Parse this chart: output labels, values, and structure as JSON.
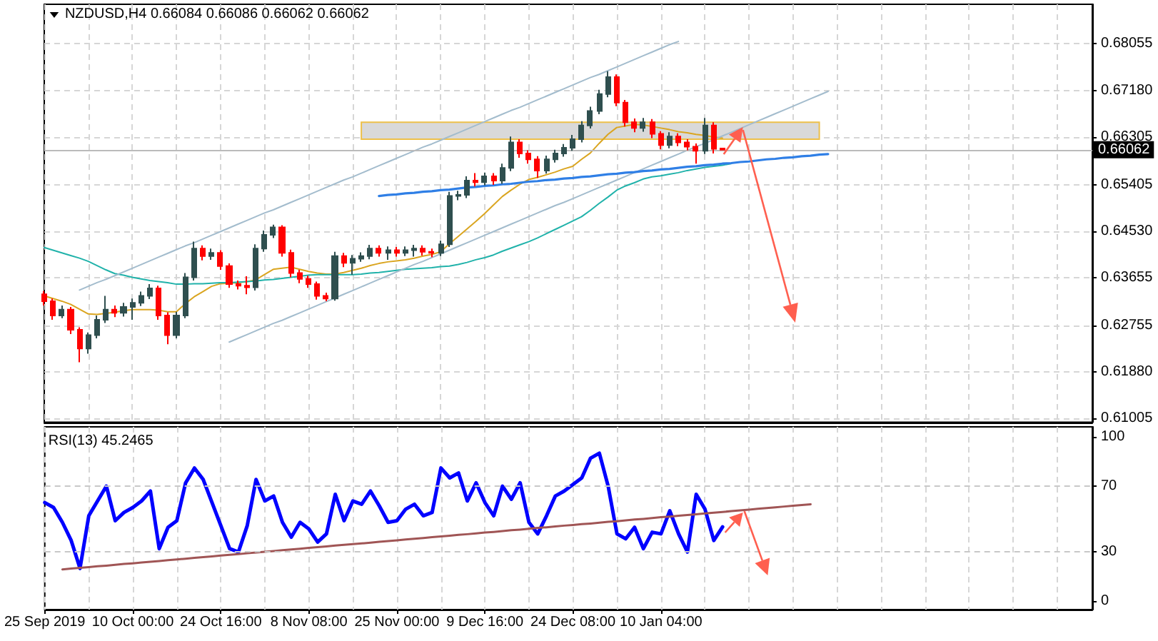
{
  "chart_data": [
    {
      "type": "candlestick",
      "title": "NZDUSD,H4 0.66084 0.66086 0.66062 0.66062",
      "categories": [
        null,
        null,
        null,
        null,
        null,
        null,
        null,
        null,
        null,
        null,
        null,
        null,
        null,
        null,
        null,
        null,
        null,
        null,
        null,
        null,
        null,
        null,
        null,
        null,
        null,
        null,
        null,
        null,
        null,
        null,
        null,
        null,
        null,
        null,
        null,
        null,
        null,
        null,
        null,
        null,
        null,
        null,
        null,
        null,
        null,
        null,
        null,
        null,
        null,
        null,
        null,
        null,
        null,
        null,
        null,
        null,
        null,
        null,
        null,
        null,
        null,
        null,
        null,
        null,
        null,
        null,
        null,
        null,
        null,
        null,
        null,
        null,
        null,
        null,
        null,
        null,
        null,
        null,
        null,
        null,
        null,
        null,
        null,
        null,
        null,
        null,
        null,
        null,
        null,
        null,
        null,
        null,
        null,
        null,
        null,
        null,
        null,
        null,
        null,
        null,
        null,
        null,
        null,
        null,
        null,
        null,
        null,
        null,
        null,
        null,
        null,
        null,
        null,
        null,
        null,
        null,
        null,
        null,
        null,
        null
      ],
      "ohlc": [
        [
          0.6334,
          0.634,
          0.6313,
          0.6321
        ],
        [
          0.6321,
          0.6326,
          0.6286,
          0.6294
        ],
        [
          0.6294,
          0.6313,
          0.6289,
          0.6305
        ],
        [
          0.6305,
          0.631,
          0.6259,
          0.6267
        ],
        [
          0.6267,
          0.6272,
          0.6206,
          0.6232
        ],
        [
          0.6232,
          0.6262,
          0.6222,
          0.6257
        ],
        [
          0.6257,
          0.6294,
          0.6251,
          0.6286
        ],
        [
          0.6286,
          0.6331,
          0.628,
          0.6305
        ],
        [
          0.6305,
          0.6313,
          0.6291,
          0.6299
        ],
        [
          0.6299,
          0.6318,
          0.6292,
          0.631
        ],
        [
          0.631,
          0.6326,
          0.6286,
          0.6318
        ],
        [
          0.6318,
          0.6339,
          0.6312,
          0.6331
        ],
        [
          0.6331,
          0.6353,
          0.6325,
          0.6345
        ],
        [
          0.6345,
          0.635,
          0.6286,
          0.6294
        ],
        [
          0.6294,
          0.63,
          0.624,
          0.6257
        ],
        [
          0.6257,
          0.6301,
          0.6251,
          0.6294
        ],
        [
          0.6294,
          0.6374,
          0.6289,
          0.6366
        ],
        [
          0.6366,
          0.6433,
          0.636,
          0.642
        ],
        [
          0.642,
          0.6426,
          0.6398,
          0.6406
        ],
        [
          0.6406,
          0.642,
          0.6399,
          0.6412
        ],
        [
          0.6412,
          0.6417,
          0.638,
          0.6387
        ],
        [
          0.6387,
          0.6392,
          0.6346,
          0.6353
        ],
        [
          0.6353,
          0.636,
          0.6343,
          0.635
        ],
        [
          0.635,
          0.6368,
          0.6334,
          0.6347
        ],
        [
          0.6347,
          0.6428,
          0.6341,
          0.642
        ],
        [
          0.642,
          0.6454,
          0.6414,
          0.6446
        ],
        [
          0.6446,
          0.6465,
          0.644,
          0.646
        ],
        [
          0.646,
          0.6464,
          0.6405,
          0.6412
        ],
        [
          0.6412,
          0.6418,
          0.6366,
          0.6374
        ],
        [
          0.6374,
          0.638,
          0.6355,
          0.6363
        ],
        [
          0.6363,
          0.6369,
          0.6346,
          0.6353
        ],
        [
          0.6353,
          0.6358,
          0.6324,
          0.6331
        ],
        [
          0.6331,
          0.6337,
          0.6321,
          0.6326
        ],
        [
          0.6326,
          0.6414,
          0.6322,
          0.6406
        ],
        [
          0.6406,
          0.6412,
          0.6385,
          0.6393
        ],
        [
          0.6393,
          0.6408,
          0.6371,
          0.6401
        ],
        [
          0.6401,
          0.6413,
          0.6395,
          0.6406
        ],
        [
          0.6406,
          0.6427,
          0.64,
          0.642
        ],
        [
          0.642,
          0.6426,
          0.6405,
          0.6412
        ],
        [
          0.6412,
          0.6424,
          0.6399,
          0.6417
        ],
        [
          0.6417,
          0.6423,
          0.6405,
          0.6412
        ],
        [
          0.6412,
          0.6424,
          0.6406,
          0.6417
        ],
        [
          0.6417,
          0.6427,
          0.6405,
          0.642
        ],
        [
          0.642,
          0.6426,
          0.6407,
          0.6414
        ],
        [
          0.6414,
          0.642,
          0.6404,
          0.6412
        ],
        [
          0.6412,
          0.6435,
          0.6406,
          0.6428
        ],
        [
          0.6428,
          0.6527,
          0.6423,
          0.6519
        ],
        [
          0.6519,
          0.6529,
          0.6511,
          0.6521
        ],
        [
          0.6521,
          0.6556,
          0.6515,
          0.6548
        ],
        [
          0.6548,
          0.6562,
          0.6537,
          0.6545
        ],
        [
          0.6545,
          0.6563,
          0.6539,
          0.6556
        ],
        [
          0.6556,
          0.6562,
          0.654,
          0.6548
        ],
        [
          0.6548,
          0.658,
          0.6542,
          0.6572
        ],
        [
          0.6572,
          0.6631,
          0.6566,
          0.662
        ],
        [
          0.662,
          0.6626,
          0.6591,
          0.6599
        ],
        [
          0.6599,
          0.6605,
          0.658,
          0.6588
        ],
        [
          0.6588,
          0.6594,
          0.6553,
          0.6567
        ],
        [
          0.6567,
          0.6595,
          0.6561,
          0.6588
        ],
        [
          0.6588,
          0.6606,
          0.6582,
          0.6599
        ],
        [
          0.6599,
          0.6617,
          0.6593,
          0.661
        ],
        [
          0.661,
          0.6634,
          0.6604,
          0.6626
        ],
        [
          0.6626,
          0.666,
          0.662,
          0.6652
        ],
        [
          0.6652,
          0.6687,
          0.6646,
          0.6679
        ],
        [
          0.6679,
          0.6719,
          0.6673,
          0.6711
        ],
        [
          0.6711,
          0.6754,
          0.6705,
          0.6743
        ],
        [
          0.6743,
          0.6748,
          0.6688,
          0.6695
        ],
        [
          0.6695,
          0.67,
          0.665,
          0.6658
        ],
        [
          0.6658,
          0.6665,
          0.6639,
          0.6647
        ],
        [
          0.6647,
          0.6666,
          0.664,
          0.6658
        ],
        [
          0.6658,
          0.6664,
          0.6628,
          0.6636
        ],
        [
          0.6636,
          0.6641,
          0.6607,
          0.6615
        ],
        [
          0.6615,
          0.6639,
          0.6609,
          0.6631
        ],
        [
          0.6631,
          0.6637,
          0.6613,
          0.662
        ],
        [
          0.662,
          0.6626,
          0.6605,
          0.6612
        ],
        [
          0.6612,
          0.6618,
          0.658,
          0.6604
        ],
        [
          0.6604,
          0.6666,
          0.6598,
          0.6652
        ],
        [
          0.6652,
          0.6658,
          0.6599,
          0.6608
        ],
        [
          0.66084,
          0.66086,
          0.66062,
          0.66062
        ],
        null,
        null,
        null,
        null,
        null,
        null,
        null,
        null,
        null,
        null,
        null,
        null,
        null,
        null,
        null,
        null,
        null,
        null,
        null,
        null,
        null,
        null,
        null,
        null,
        null,
        null,
        null,
        null,
        null,
        null,
        null,
        null,
        null,
        null,
        null,
        null,
        null,
        null,
        null,
        null,
        null,
        null
      ],
      "colors": [
        "#ff0000",
        "#ff0000",
        "#2f4f4f",
        "#ff0000",
        "#ff0000",
        "#2f4f4f",
        "#2f4f4f",
        "#2f4f4f",
        "#ff0000",
        "#2f4f4f",
        "#2f4f4f",
        "#2f4f4f",
        "#2f4f4f",
        "#ff0000",
        "#ff0000",
        "#2f4f4f",
        "#2f4f4f",
        "#2f4f4f",
        "#ff0000",
        "#2f4f4f",
        "#ff0000",
        "#ff0000",
        "#ff0000",
        "#ff0000",
        "#2f4f4f",
        "#2f4f4f",
        "#2f4f4f",
        "#ff0000",
        "#ff0000",
        "#ff0000",
        "#ff0000",
        "#ff0000",
        "#ff0000",
        "#2f4f4f",
        "#ff0000",
        "#2f4f4f",
        "#2f4f4f",
        "#2f4f4f",
        "#ff0000",
        "#2f4f4f",
        "#ff0000",
        "#2f4f4f",
        "#2f4f4f",
        "#ff0000",
        "#ff0000",
        "#2f4f4f",
        "#2f4f4f",
        "#2f4f4f",
        "#2f4f4f",
        "#ff0000",
        "#2f4f4f",
        "#ff0000",
        "#2f4f4f",
        "#2f4f4f",
        "#ff0000",
        "#ff0000",
        "#ff0000",
        "#2f4f4f",
        "#2f4f4f",
        "#2f4f4f",
        "#2f4f4f",
        "#2f4f4f",
        "#2f4f4f",
        "#2f4f4f",
        "#2f4f4f",
        "#ff0000",
        "#ff0000",
        "#ff0000",
        "#2f4f4f",
        "#ff0000",
        "#ff0000",
        "#2f4f4f",
        "#ff0000",
        "#ff0000",
        "#ff0000",
        "#2f4f4f",
        "#ff0000",
        "#ff0000",
        null,
        null,
        null,
        null,
        null,
        null,
        null,
        null,
        null,
        null,
        null,
        null,
        null,
        null,
        null,
        null,
        null,
        null,
        null,
        null,
        null,
        null,
        null,
        null,
        null,
        null,
        null,
        null,
        null,
        null,
        null,
        null,
        null,
        null,
        null,
        null,
        null,
        null,
        null,
        null,
        null,
        null
      ],
      "series": [
        {
          "type": "line",
          "color": "#daa520",
          "values": [
            0.6331,
            0.6326,
            0.6321,
            0.6315,
            0.6306,
            0.6297,
            0.6296,
            0.6298,
            0.63,
            0.6303,
            0.6305,
            0.6305,
            0.6305,
            0.6304,
            0.6301,
            0.6301,
            0.6316,
            0.6329,
            0.6339,
            0.6349,
            0.6354,
            0.6355,
            0.6356,
            0.6358,
            0.6361,
            0.6371,
            0.6381,
            0.6383,
            0.6385,
            0.6381,
            0.6377,
            0.6374,
            0.6372,
            0.6372,
            0.6375,
            0.6379,
            0.6383,
            0.6388,
            0.6392,
            0.6395,
            0.6397,
            0.6399,
            0.6402,
            0.6406,
            0.6409,
            0.6414,
            0.6429,
            0.6443,
            0.6457,
            0.6471,
            0.6486,
            0.6502,
            0.6518,
            0.653,
            0.6541,
            0.655,
            0.6554,
            0.6559,
            0.6564,
            0.657,
            0.6575,
            0.6588,
            0.66,
            0.6618,
            0.6635,
            0.6648,
            0.6651,
            0.6654,
            0.6653,
            0.665,
            0.6647,
            0.6644,
            0.664,
            0.6638,
            0.6635,
            0.6633,
            0.663,
            0.6628,
            null,
            null,
            null,
            null,
            null,
            null,
            null,
            null,
            null,
            null,
            null,
            null,
            null,
            null,
            null,
            null,
            null,
            null,
            null,
            null,
            null,
            null,
            null,
            null,
            null,
            null,
            null,
            null,
            null,
            null,
            null,
            null,
            null,
            null,
            null,
            null,
            null,
            null,
            null,
            null,
            null,
            null
          ]
        },
        {
          "type": "line",
          "color": "#20b2aa",
          "values": [
            0.6422,
            0.6417,
            0.6412,
            0.6407,
            0.6402,
            0.6396,
            0.6388,
            0.638,
            0.6373,
            0.637,
            0.6366,
            0.6363,
            0.636,
            0.6358,
            0.6356,
            0.6353,
            0.6353,
            0.6354,
            0.6354,
            0.6355,
            0.6356,
            0.6356,
            0.6357,
            0.6358,
            0.6359,
            0.6361,
            0.6362,
            0.6364,
            0.6366,
            0.6368,
            0.637,
            0.6371,
            0.6371,
            0.6371,
            0.6371,
            0.6371,
            0.6372,
            0.6374,
            0.6375,
            0.6377,
            0.6379,
            0.6381,
            0.6382,
            0.6383,
            0.6384,
            0.6386,
            0.6387,
            0.639,
            0.6394,
            0.6399,
            0.6403,
            0.6408,
            0.6415,
            0.6421,
            0.6427,
            0.6433,
            0.644,
            0.6448,
            0.6456,
            0.6464,
            0.6472,
            0.648,
            0.6492,
            0.6505,
            0.6517,
            0.653,
            0.6538,
            0.6544,
            0.6551,
            0.6555,
            0.6557,
            0.656,
            0.6563,
            0.6567,
            0.657,
            0.6573,
            0.6575,
            0.6577,
            0.658,
            null,
            null,
            null,
            null,
            null,
            null,
            null,
            null,
            null,
            null,
            null,
            null,
            null,
            null,
            null,
            null,
            null,
            null,
            null,
            null,
            null,
            null,
            null,
            null,
            null,
            null,
            null,
            null,
            null,
            null,
            null,
            null,
            null,
            null,
            null,
            null,
            null,
            null,
            null,
            null,
            null
          ]
        },
        {
          "type": "line",
          "color": "#a3bccd",
          "values": [
            null,
            null,
            null,
            null,
            0.6342,
            0.6349,
            0.6356,
            0.6362,
            0.6369,
            0.6376,
            0.6383,
            0.639,
            0.6397,
            0.6404,
            0.6411,
            0.6418,
            0.6425,
            0.6431,
            0.6438,
            0.6445,
            0.6452,
            0.6459,
            0.6466,
            0.6473,
            0.648,
            0.6487,
            0.6493,
            0.65,
            0.6507,
            0.6514,
            0.6521,
            0.6528,
            0.6535,
            0.6542,
            0.6549,
            0.6555,
            0.6562,
            0.6569,
            0.6576,
            0.6583,
            0.659,
            0.6597,
            0.6604,
            0.6611,
            0.6617,
            0.6624,
            0.6631,
            0.6638,
            0.6645,
            0.6652,
            0.6659,
            0.6666,
            0.6673,
            0.668,
            0.6686,
            0.6693,
            0.67,
            0.6707,
            0.6714,
            0.6721,
            0.6728,
            0.6735,
            0.6742,
            0.6748,
            0.6755,
            0.6762,
            0.6769,
            0.6776,
            0.6783,
            0.679,
            0.6797,
            0.6804,
            0.681,
            null,
            null,
            null,
            null,
            null,
            null,
            null,
            null,
            null,
            null,
            null,
            null,
            null,
            null,
            null,
            null,
            null,
            null,
            null,
            null,
            null,
            null,
            null,
            null,
            null,
            null,
            null,
            null,
            null,
            null,
            null,
            null,
            null,
            null,
            null,
            null,
            null,
            null,
            null,
            null,
            null,
            null,
            null,
            null,
            null,
            null,
            null
          ]
        },
        {
          "type": "line",
          "color": "#a3bccd",
          "values": [
            null,
            null,
            null,
            null,
            null,
            null,
            null,
            null,
            null,
            null,
            null,
            null,
            null,
            null,
            null,
            null,
            null,
            null,
            null,
            null,
            null,
            0.6244,
            0.6251,
            0.6258,
            0.6265,
            0.6272,
            0.6279,
            0.6285,
            0.6292,
            0.6299,
            0.6306,
            0.6313,
            0.632,
            0.6327,
            0.6334,
            0.6341,
            0.6348,
            0.6355,
            0.6362,
            0.6369,
            0.6376,
            0.6383,
            0.639,
            0.6396,
            0.6403,
            0.641,
            0.6417,
            0.6424,
            0.6431,
            0.6438,
            0.6445,
            0.6452,
            0.6459,
            0.6466,
            0.6473,
            0.648,
            0.6487,
            0.6494,
            0.6501,
            0.6507,
            0.6514,
            0.6521,
            0.6528,
            0.6535,
            0.6542,
            0.6549,
            0.6556,
            0.6563,
            0.657,
            0.6577,
            0.6584,
            0.6591,
            0.6598,
            0.6605,
            0.6612,
            0.6618,
            0.6625,
            0.6632,
            0.6639,
            0.6646,
            0.6653,
            0.666,
            0.6667,
            0.6674,
            0.6681,
            0.6688,
            0.6695,
            0.6702,
            0.6709,
            0.6716,
            null,
            null,
            null,
            null,
            null,
            null,
            null,
            null,
            null,
            null,
            null,
            null,
            null,
            null,
            null,
            null,
            null,
            null,
            null,
            null,
            null,
            null,
            null,
            null,
            null,
            null,
            null,
            null,
            null,
            null
          ]
        },
        {
          "type": "line",
          "color": "#2f7fe6",
          "values": [
            null,
            null,
            null,
            null,
            null,
            null,
            null,
            null,
            null,
            null,
            null,
            null,
            null,
            null,
            null,
            null,
            null,
            null,
            null,
            null,
            null,
            null,
            null,
            null,
            null,
            null,
            null,
            null,
            null,
            null,
            null,
            null,
            null,
            null,
            null,
            null,
            null,
            null,
            0.6519,
            0.6521,
            0.6522,
            0.6524,
            0.6525,
            0.6527,
            0.6528,
            0.653,
            0.6531,
            0.6533,
            0.6535,
            0.6536,
            0.6538,
            0.6539,
            0.6541,
            0.6542,
            0.6544,
            0.6546,
            0.6547,
            0.6549,
            0.655,
            0.6552,
            0.6553,
            0.6555,
            0.6556,
            0.6558,
            0.656,
            0.6561,
            0.6563,
            0.6564,
            0.6566,
            0.6567,
            0.6569,
            0.657,
            0.6572,
            0.6574,
            0.6575,
            0.6577,
            0.6578,
            0.658,
            0.6581,
            0.6583,
            0.6584,
            0.6586,
            0.6588,
            0.6589,
            0.6591,
            0.6592,
            0.6594,
            0.6595,
            0.6597,
            0.6598,
            null,
            null,
            null,
            null,
            null,
            null,
            null,
            null,
            null,
            null,
            null,
            null,
            null,
            null,
            null,
            null,
            null,
            null,
            null,
            null,
            null,
            null,
            null,
            null,
            null,
            null,
            null,
            null,
            null,
            null
          ]
        }
      ],
      "ylim": [
        0.6093,
        0.688
      ],
      "yticks": [
        0.61005,
        {
          "value": 0.6188,
          "label": "0.61880"
        },
        0.62755,
        0.63655,
        {
          "value": 0.6453,
          "label": "0.64530"
        },
        0.65405,
        0.66305,
        {
          "value": 0.6718,
          "label": "0.67180"
        },
        0.68055
      ],
      "grid": true,
      "tick_labels": "y",
      "ref_lines": [
        {
          "axis": "y",
          "value": 0.66062,
          "label": "0.66062",
          "color": "#bbbbbb"
        }
      ],
      "bands": [
        {
          "axis": "y",
          "from": 0.6626,
          "to": 0.6658,
          "color": "#d9d9d9"
        }
      ]
    },
    {
      "type": "line",
      "title": "RSI(13) 45.2465",
      "categories": [
        "25 Sep 2019",
        null,
        null,
        null,
        null,
        null,
        null,
        null,
        null,
        null,
        "10 Oct 00:00",
        null,
        null,
        null,
        null,
        null,
        null,
        null,
        null,
        null,
        "24 Oct 16:00",
        null,
        null,
        null,
        null,
        null,
        null,
        null,
        null,
        null,
        "8 Nov 08:00",
        null,
        null,
        null,
        null,
        null,
        null,
        null,
        null,
        null,
        "25 Nov 00:00",
        null,
        null,
        null,
        null,
        null,
        null,
        null,
        null,
        null,
        "9 Dec 16:00",
        null,
        null,
        null,
        null,
        null,
        null,
        null,
        null,
        null,
        "24 Dec 08:00",
        null,
        null,
        null,
        null,
        null,
        null,
        null,
        null,
        null,
        "10 Jan 04:00",
        null,
        null,
        null,
        null,
        null,
        null,
        null,
        null,
        null,
        null,
        null,
        null,
        null,
        null,
        null,
        null,
        null,
        null,
        null,
        null,
        null,
        null,
        null,
        null,
        null,
        null,
        null,
        null,
        null,
        null,
        null,
        null,
        null,
        null,
        null,
        null,
        null,
        null,
        null,
        null,
        null,
        null,
        null,
        null,
        null,
        null,
        null,
        null,
        null
      ],
      "series": [
        {
          "color": "#0000ff",
          "values": [
            60,
            57,
            48,
            37,
            20,
            52,
            61,
            70,
            49,
            54,
            57,
            61,
            67,
            32,
            45,
            49,
            72,
            81,
            74,
            60,
            46,
            32,
            30,
            46,
            74,
            61,
            64,
            48,
            39,
            48,
            44,
            36,
            41,
            65,
            49,
            61,
            59,
            67,
            58,
            48,
            49,
            56,
            59,
            52,
            54,
            81,
            75,
            78,
            61,
            72,
            60,
            52,
            70,
            62,
            72,
            48,
            41,
            52,
            64,
            67,
            71,
            75,
            87,
            90,
            70,
            41,
            38,
            45,
            32,
            42,
            41,
            55,
            41,
            30,
            65,
            56,
            37,
            45.2465,
            null,
            null,
            null,
            null,
            null,
            null,
            null,
            null,
            null,
            null,
            null,
            null,
            null,
            null,
            null,
            null,
            null,
            null,
            null,
            null,
            null,
            null,
            null,
            null,
            null,
            null,
            null,
            null,
            null,
            null,
            null,
            null,
            null,
            null,
            null,
            null,
            null,
            null,
            null,
            null,
            null,
            null
          ]
        },
        {
          "color": "#a05555",
          "values": [
            null,
            null,
            19.4,
            19.9,
            20.4,
            20.8,
            21.3,
            21.7,
            22.2,
            22.7,
            23.1,
            23.6,
            24.1,
            24.5,
            25.0,
            25.5,
            25.9,
            26.4,
            26.9,
            27.3,
            27.8,
            28.3,
            28.7,
            29.2,
            29.7,
            30.1,
            30.6,
            31.1,
            31.5,
            32.0,
            32.5,
            32.9,
            33.4,
            33.9,
            34.3,
            34.8,
            35.2,
            35.7,
            36.2,
            36.6,
            37.1,
            37.6,
            38.0,
            38.5,
            39.0,
            39.4,
            39.9,
            40.4,
            40.8,
            41.3,
            41.8,
            42.2,
            42.7,
            43.2,
            43.6,
            44.1,
            44.6,
            45.0,
            45.5,
            46.0,
            46.4,
            46.9,
            47.3,
            47.8,
            48.3,
            48.7,
            49.2,
            49.7,
            50.1,
            50.6,
            51.1,
            51.5,
            52.0,
            52.5,
            52.9,
            53.4,
            53.9,
            54.3,
            54.8,
            55.3,
            55.7,
            56.2,
            56.7,
            57.1,
            57.6,
            58.1,
            58.5,
            59.0,
            null,
            null,
            null,
            null,
            null,
            null,
            null,
            null,
            null,
            null,
            null,
            null,
            null,
            null,
            null,
            null,
            null,
            null,
            null,
            null,
            null,
            null,
            null,
            null,
            null,
            null,
            null,
            null,
            null,
            null,
            null,
            null
          ]
        }
      ],
      "ylim": [
        -5,
        106
      ],
      "yticks": [
        0,
        30,
        70,
        100
      ],
      "grid": "x",
      "ref_lines": [
        {
          "axis": "y",
          "value": 30,
          "color": "#c8c8c8",
          "line_style": "dashed"
        },
        {
          "axis": "y",
          "value": 70,
          "color": "#c8c8c8",
          "line_style": "dashed"
        }
      ]
    }
  ]
}
